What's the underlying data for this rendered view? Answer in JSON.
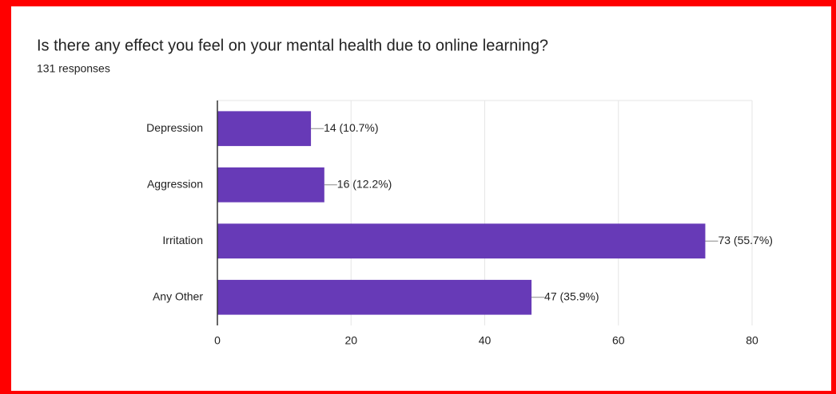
{
  "chart_data": {
    "type": "bar",
    "orientation": "horizontal",
    "title": "Is there any effect you feel on your mental health due to online learning?",
    "subtitle": "131 responses",
    "categories": [
      "Depression",
      "Aggression",
      "Irritation",
      "Any Other"
    ],
    "values": [
      14,
      16,
      73,
      47
    ],
    "value_labels": [
      "14 (10.7%)",
      "16 (12.2%)",
      "73 (55.7%)",
      "47 (35.9%)"
    ],
    "color": "#673ab7",
    "xlim": [
      0,
      80
    ],
    "xticks": [
      0,
      20,
      40,
      60,
      80
    ],
    "grid": true
  }
}
